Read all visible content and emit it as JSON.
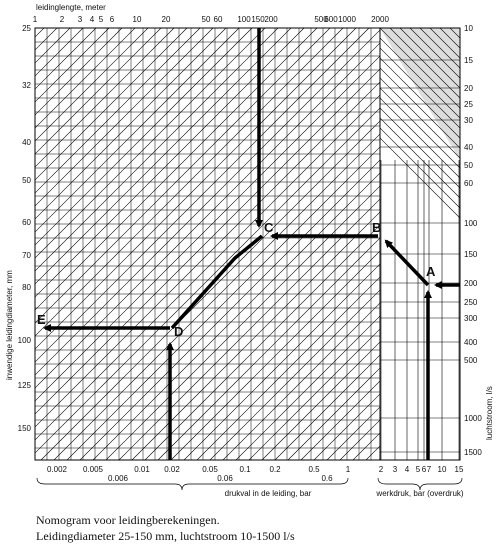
{
  "axes": {
    "top": {
      "title": "leidinglengte, meter",
      "ticks": [
        "1",
        "2",
        "3",
        "4",
        "5",
        "6",
        "10",
        "20",
        "50",
        "60",
        "100",
        "150",
        "200",
        "500",
        "600",
        "1000",
        "2000"
      ]
    },
    "left": {
      "title": "inwendige leidingdiameter, mm",
      "ticks": [
        "25",
        "32",
        "40",
        "50",
        "60",
        "70",
        "80",
        "100",
        "125",
        "150"
      ]
    },
    "right": {
      "title": "luchtstroom, l/s",
      "ticks": [
        "10",
        "15",
        "20",
        "25",
        "30",
        "40",
        "50",
        "60",
        "100",
        "150",
        "200",
        "250",
        "300",
        "400",
        "500",
        "1000",
        "1500"
      ]
    },
    "bottom": {
      "title": "drukval in de leiding, bar",
      "ticks": [
        "0.002",
        "0.005",
        "0.01",
        "0.02",
        "0.05",
        "0.1",
        "0.2",
        "0.5",
        "1"
      ],
      "ticks_row2": [
        "0.006",
        "0.06",
        "0.6"
      ]
    },
    "bottom_right": {
      "title": "werkdruk, bar (overdruk)",
      "ticks": [
        "2",
        "3",
        "4",
        "5",
        "6",
        "7",
        "10",
        "15"
      ]
    }
  },
  "points": [
    "A",
    "B",
    "C",
    "D",
    "E"
  ],
  "caption": [
    "Nomogram voor leidingberekeningen.",
    "Leidingdiameter 25-150 mm, luchtstroom 10-1500 l/s"
  ]
}
